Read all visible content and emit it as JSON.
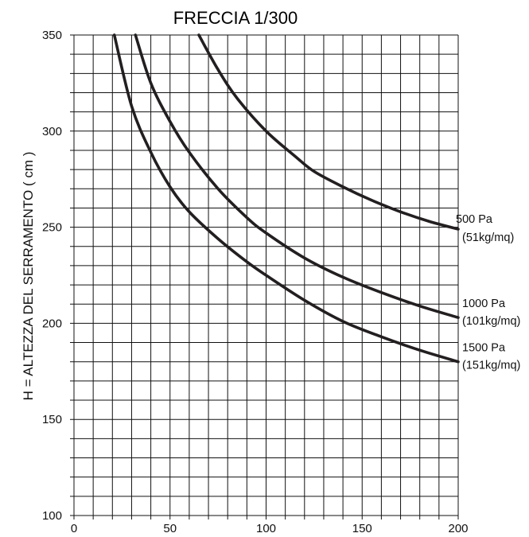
{
  "chart_data": {
    "type": "line",
    "title": "FRECCIA 1/300",
    "xlabel": "",
    "ylabel": "H = ALTEZZA DEL SERRAMENTO ( cm )",
    "xlim": [
      0,
      200
    ],
    "ylim": [
      100,
      350
    ],
    "x_ticks": [
      "0",
      "50",
      "100",
      "150",
      "200"
    ],
    "y_ticks": [
      "100",
      "150",
      "200",
      "250",
      "300",
      "350"
    ],
    "grid": true,
    "series": [
      {
        "name": "500 Pa (51kg/mq)",
        "label_line1": "500 Pa",
        "label_line2": "(51kg/mq)",
        "x": [
          65,
          75,
          85,
          100,
          115,
          125,
          140,
          155,
          170,
          185,
          200
        ],
        "y": [
          350,
          332,
          317,
          300,
          287,
          279,
          271,
          264,
          258,
          253,
          249
        ]
      },
      {
        "name": "1000 Pa (101kg/mq)",
        "label_line1": "1000 Pa",
        "label_line2": "(101kg/mq)",
        "x": [
          32,
          40,
          50,
          60,
          75,
          90,
          100,
          120,
          140,
          160,
          180,
          200
        ],
        "y": [
          350,
          325,
          305,
          289,
          270,
          255,
          247,
          234,
          224,
          216,
          209,
          203
        ]
      },
      {
        "name": "1500 Pa (151kg/mq)",
        "label_line1": "1500 Pa",
        "label_line2": "(151kg/mq)",
        "x": [
          21,
          30,
          40,
          50,
          60,
          75,
          90,
          100,
          120,
          140,
          160,
          180,
          200
        ],
        "y": [
          350,
          313,
          289,
          271,
          258,
          244,
          232,
          225,
          212,
          201,
          193,
          186,
          180
        ]
      }
    ]
  }
}
